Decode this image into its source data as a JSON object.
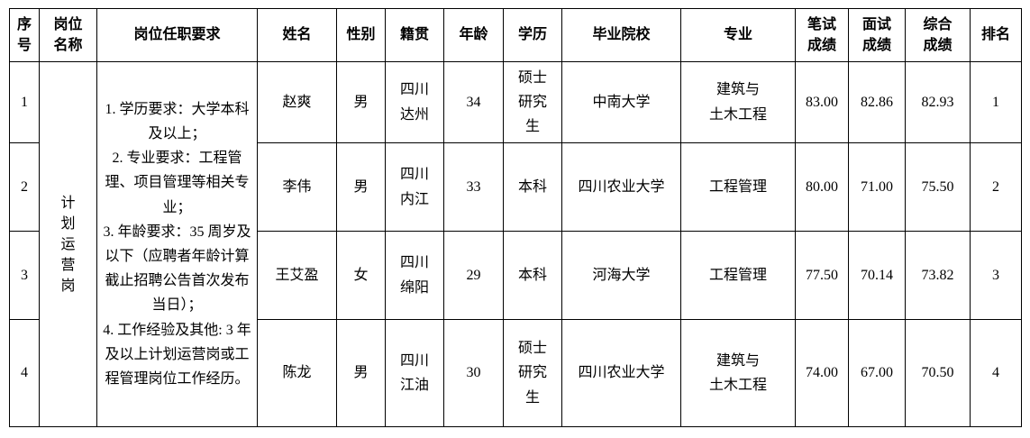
{
  "table": {
    "columns": {
      "seq": "序\n号",
      "position": "岗位\n名称",
      "requirements": "岗位任职要求",
      "name": "姓名",
      "gender": "性别",
      "native_place": "籍贯",
      "age": "年龄",
      "education": "学历",
      "school": "毕业院校",
      "major": "专业",
      "written_score": "笔试\n成绩",
      "interview_score": "面试\n成绩",
      "overall_score": "综合\n成绩",
      "rank": "排名"
    },
    "position_name": "计划运营岗",
    "requirements": "1. 学历要求：大学本科及以上；\n2. 专业要求：工程管理、项目管理等相关专业；\n3. 年龄要求：35 周岁及以下（应聘者年龄计算截止招聘公告首次发布当日）；\n4. 工作经验及其他: 3 年及以上计划运营岗或工程管理岗位工作经历。",
    "rows": [
      {
        "seq": "1",
        "name": "赵爽",
        "gender": "男",
        "native_place": "四川\n达州",
        "age": "34",
        "education": "硕士\n研究\n生",
        "school": "中南大学",
        "major": "建筑与\n土木工程",
        "written_score": "83.00",
        "interview_score": "82.86",
        "overall_score": "82.93",
        "rank": "1"
      },
      {
        "seq": "2",
        "name": "李伟",
        "gender": "男",
        "native_place": "四川\n内江",
        "age": "33",
        "education": "本科",
        "school": "四川农业大学",
        "major": "工程管理",
        "written_score": "80.00",
        "interview_score": "71.00",
        "overall_score": "75.50",
        "rank": "2"
      },
      {
        "seq": "3",
        "name": "王艾盈",
        "gender": "女",
        "native_place": "四川\n绵阳",
        "age": "29",
        "education": "本科",
        "school": "河海大学",
        "major": "工程管理",
        "written_score": "77.50",
        "interview_score": "70.14",
        "overall_score": "73.82",
        "rank": "3"
      },
      {
        "seq": "4",
        "name": "陈龙",
        "gender": "男",
        "native_place": "四川\n江油",
        "age": "30",
        "education": "硕士\n研究\n生",
        "school": "四川农业大学",
        "major": "建筑与\n土木工程",
        "written_score": "74.00",
        "interview_score": "67.00",
        "overall_score": "70.50",
        "rank": "4"
      }
    ]
  }
}
